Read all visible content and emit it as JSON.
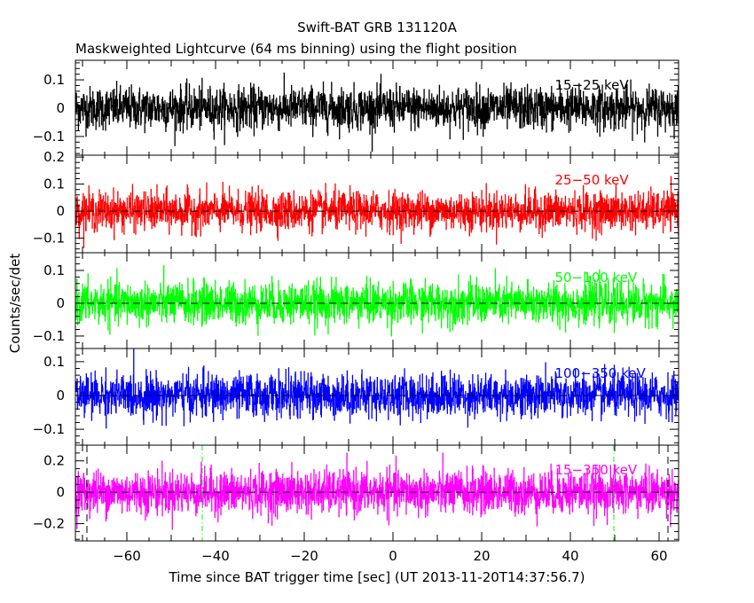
{
  "chart_data": {
    "type": "line",
    "title": "Swift-BAT GRB 131120A",
    "subtitle": "Maskweighted Lightcurve (64 ms binning) using the flight position",
    "xlabel": "Time since BAT trigger time [sec] (UT 2013-11-20T14:37:56.7)",
    "ylabel": "Counts/sec/det",
    "xlim": [
      -71.6,
      64.4
    ],
    "bin_seconds": 0.064,
    "x_ticks": [
      -60,
      -40,
      -20,
      0,
      20,
      40,
      60
    ],
    "x_tick_labels": [
      "−60",
      "−40",
      "−20",
      "0",
      "20",
      "40",
      "60"
    ],
    "panels": [
      {
        "name": "15-25 keV",
        "label": "15−25 keV",
        "color": "#000000",
        "ylim": [
          -0.166,
          0.169
        ],
        "y_ticks": [
          0.1,
          0,
          -0.1
        ],
        "y_tick_labels": [
          "0.1",
          "0",
          "−0.1"
        ],
        "noise_sigma": 0.038,
        "zero_line": false
      },
      {
        "name": "25-50 keV",
        "label": "25−50 keV",
        "color": "#ff0000",
        "ylim": [
          -0.154,
          0.207
        ],
        "y_ticks": [
          0.2,
          0.1,
          0,
          -0.1
        ],
        "y_tick_labels": [
          "0.2",
          "0.1",
          "0",
          "−0.1"
        ],
        "noise_sigma": 0.036,
        "zero_line": true
      },
      {
        "name": "50-100 keV",
        "label": "50−100 keV",
        "color": "#00ff00",
        "ylim": [
          -0.138,
          0.154
        ],
        "y_ticks": [
          0.1,
          0,
          -0.1
        ],
        "y_tick_labels": [
          "0.1",
          "0",
          "−0.1"
        ],
        "noise_sigma": 0.032,
        "zero_line": true
      },
      {
        "name": "100-350 keV",
        "label": "100−350 keV",
        "color": "#0000ff",
        "ylim": [
          -0.147,
          0.139
        ],
        "y_ticks": [
          0.1,
          0,
          -0.1
        ],
        "y_tick_labels": [
          "0.1",
          "0",
          "−0.1"
        ],
        "noise_sigma": 0.032,
        "zero_line": true
      },
      {
        "name": "15-350 keV",
        "label": "15−350 keV",
        "color": "#ff00ff",
        "ylim": [
          -0.31,
          0.3
        ],
        "y_ticks": [
          0.2,
          0,
          -0.2
        ],
        "y_tick_labels": [
          "0.2",
          "0",
          "−0.2"
        ],
        "noise_sigma": 0.07,
        "zero_line": true
      }
    ],
    "vertical_markers": [
      {
        "x": -69,
        "style": "dashed",
        "color": "#000000"
      },
      {
        "x": 62,
        "style": "dashed",
        "color": "#000000"
      },
      {
        "x": -43,
        "style": "dashdot",
        "color": "#00ff00"
      },
      {
        "x": 49.8,
        "style": "dashdot",
        "color": "#00ff00"
      }
    ]
  }
}
